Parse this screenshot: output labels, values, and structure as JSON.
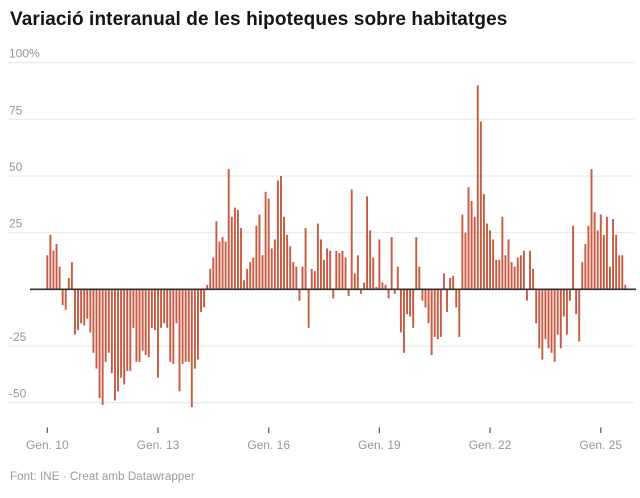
{
  "title": "Variació interanual de les hipoteques sobre habitatges",
  "footer": "Font: INE · Creat amb Datawrapper",
  "colors": {
    "bar": "#c75a40",
    "zero_line": "#303030",
    "grid_line": "#e8e8e8",
    "axis_text": "#979797",
    "tick_mark": "#555555",
    "title_text": "#151515",
    "background": "#ffffff"
  },
  "chart_data": {
    "type": "bar",
    "title": "Variació interanual de les hipoteques sobre habitatges",
    "unit": "%",
    "frequency": "monthly",
    "series_start": {
      "year": 2010,
      "month": 1
    },
    "series_end": {
      "year": 2025,
      "month": 9
    },
    "xlabel": "",
    "ylabel": "",
    "ylim": [
      -57,
      105
    ],
    "grid": true,
    "y_axis": {
      "ticks": [
        {
          "value": 100,
          "label": "100%"
        },
        {
          "value": 75,
          "label": "75"
        },
        {
          "value": 50,
          "label": "50"
        },
        {
          "value": 25,
          "label": "25"
        },
        {
          "value": -25,
          "label": "-25"
        },
        {
          "value": -50,
          "label": "-50"
        }
      ],
      "zero_baseline": true
    },
    "x_axis": {
      "ticks": [
        {
          "month_index": 0,
          "label": "Gen. 10"
        },
        {
          "month_index": 36,
          "label": "Gen. 13"
        },
        {
          "month_index": 72,
          "label": "Gen. 16"
        },
        {
          "month_index": 108,
          "label": "Gen. 19"
        },
        {
          "month_index": 144,
          "label": "Gen. 22"
        },
        {
          "month_index": 180,
          "label": "Gen. 25"
        }
      ]
    },
    "values": [
      15,
      24,
      17,
      20,
      10,
      -7,
      -9,
      5,
      12,
      -20,
      -18,
      -15,
      -16,
      -13,
      -19,
      -28,
      -35,
      -48,
      -51,
      -32,
      -28,
      -37,
      -49,
      -45,
      -39,
      -42,
      -36,
      -36,
      -17,
      -32,
      -32,
      -27,
      -29,
      -30,
      -17,
      -18,
      -39,
      -17,
      -15,
      -17,
      -32,
      -33,
      -15,
      -45,
      -33,
      -32,
      -32,
      -52,
      -35,
      -31,
      -10,
      -8,
      2,
      9,
      14,
      30,
      21,
      23,
      21,
      53,
      32,
      36,
      35,
      27,
      4,
      9,
      12,
      14,
      28,
      33,
      15,
      43,
      40,
      18,
      22,
      48,
      50,
      32,
      24,
      19,
      12,
      10,
      -5,
      10,
      27,
      -17,
      9,
      8,
      29,
      22,
      13,
      18,
      17,
      -4,
      17,
      16,
      17,
      14,
      -3,
      44,
      7,
      15,
      -2,
      3,
      41,
      26,
      14,
      1,
      22,
      3,
      2,
      -4,
      23,
      -2,
      10,
      -19,
      -28,
      -11,
      -12,
      -17,
      23,
      10,
      -5,
      -8,
      -15,
      -29,
      -21,
      -22,
      -21,
      7,
      -10,
      5,
      6,
      -8,
      -21,
      33,
      25,
      45,
      39,
      32,
      90,
      74,
      42,
      29,
      26,
      22,
      13,
      13,
      32,
      15,
      22,
      12,
      10,
      14,
      15,
      17,
      -5,
      17,
      9,
      -15,
      -26,
      -31,
      -22,
      -26,
      -28,
      -32,
      -20,
      -26,
      -12,
      -20,
      -5,
      28,
      -11,
      -23,
      12,
      20,
      28,
      53,
      34,
      26,
      33,
      24,
      32,
      10,
      31,
      24,
      15,
      15,
      2
    ]
  }
}
